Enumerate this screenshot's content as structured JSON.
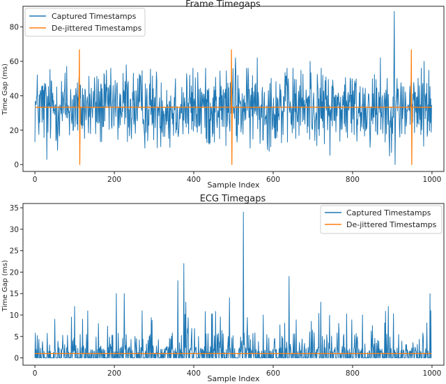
{
  "chart_data": [
    {
      "type": "line",
      "title": "Frame Timegaps",
      "xlabel": "Sample Index",
      "ylabel": "Time Gap (ms)",
      "xlim": [
        -30,
        1030
      ],
      "ylim": [
        -4,
        92
      ],
      "xticks": [
        0,
        200,
        400,
        600,
        800,
        1000
      ],
      "yticks": [
        0,
        20,
        40,
        60,
        80
      ],
      "legend_position": "top-left",
      "grid": false,
      "series": [
        {
          "name": "Captured Timestamps",
          "color": "#1f77b4",
          "description": "dense noisy signal, 1000 samples, mostly between 15 and 50 ms around 33 ms",
          "baseline": 33.3,
          "spikes": [
            [
              30,
              3
            ],
            [
              80,
              57
            ],
            [
              230,
              58
            ],
            [
              340,
              10
            ],
            [
              505,
              62
            ],
            [
              560,
              62
            ],
            [
              693,
              60
            ],
            [
              870,
              62
            ],
            [
              905,
              89
            ],
            [
              907,
              0
            ],
            [
              980,
              60
            ]
          ]
        },
        {
          "name": "De-jittered Timestamps",
          "color": "#ff7f0e",
          "baseline": 33.3,
          "spikes": [
            [
              112,
              66.7
            ],
            [
              495,
              66.7
            ],
            [
              948,
              66.7
            ]
          ]
        }
      ]
    },
    {
      "type": "line",
      "title": "ECG Timegaps",
      "xlabel": "Sample Index",
      "ylabel": "Time Gap (ms)",
      "xlim": [
        -30,
        1030
      ],
      "ylim": [
        -1.7,
        36
      ],
      "xticks": [
        0,
        200,
        400,
        600,
        800,
        1000
      ],
      "yticks": [
        0,
        5,
        10,
        15,
        20,
        25,
        30,
        35
      ],
      "legend_position": "top-right",
      "grid": false,
      "series": [
        {
          "name": "Captured Timestamps",
          "color": "#1f77b4",
          "description": "sparse spikes from near 0, 1000 samples",
          "baseline": 0,
          "spikes": [
            [
              50,
              9
            ],
            [
              100,
              12
            ],
            [
              160,
              8
            ],
            [
              205,
              15
            ],
            [
              225,
              15
            ],
            [
              270,
              11
            ],
            [
              360,
              18
            ],
            [
              375,
              22
            ],
            [
              380,
              13
            ],
            [
              490,
              14
            ],
            [
              525,
              34
            ],
            [
              575,
              10
            ],
            [
              640,
              19
            ],
            [
              720,
              13
            ],
            [
              825,
              10
            ],
            [
              890,
              12
            ],
            [
              995,
              15
            ]
          ]
        },
        {
          "name": "De-jittered Timestamps",
          "color": "#ff7f0e",
          "baseline": 1.0,
          "spikes": []
        }
      ]
    }
  ]
}
